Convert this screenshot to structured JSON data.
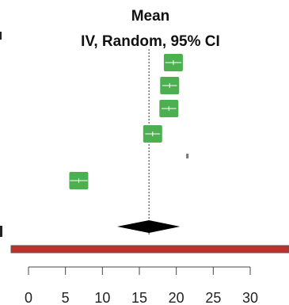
{
  "header": {
    "line1": "Mean",
    "line2": "IV, Random, 95% CI"
  },
  "chart_data": {
    "type": "forest",
    "xlim": [
      0,
      35
    ],
    "ticks": [
      0,
      5,
      10,
      15,
      20,
      25,
      30
    ],
    "tick_labels": [
      "0",
      "5",
      "10",
      "15",
      "20",
      "25",
      "30"
    ],
    "reference_line": 16.3,
    "studies": [
      {
        "mean": 19.6,
        "ci": [
          18.5,
          20.7
        ]
      },
      {
        "mean": 19.1,
        "ci": [
          18.1,
          20.1
        ]
      },
      {
        "mean": 19.0,
        "ci": [
          18.0,
          20.0
        ]
      },
      {
        "mean": 16.8,
        "ci": [
          15.8,
          17.8
        ]
      },
      {
        "mean": 21.5,
        "ci": [
          21.4,
          21.6
        ],
        "marker": "tiny"
      },
      {
        "mean": 6.8,
        "ci": [
          5.6,
          8.0
        ]
      }
    ],
    "pooled": {
      "mean": 16.3,
      "ci": [
        12.0,
        20.5
      ]
    },
    "colors": {
      "study_box": "#4caf50",
      "pooled": "#000000",
      "bottom_bar": "#c0302b"
    }
  }
}
